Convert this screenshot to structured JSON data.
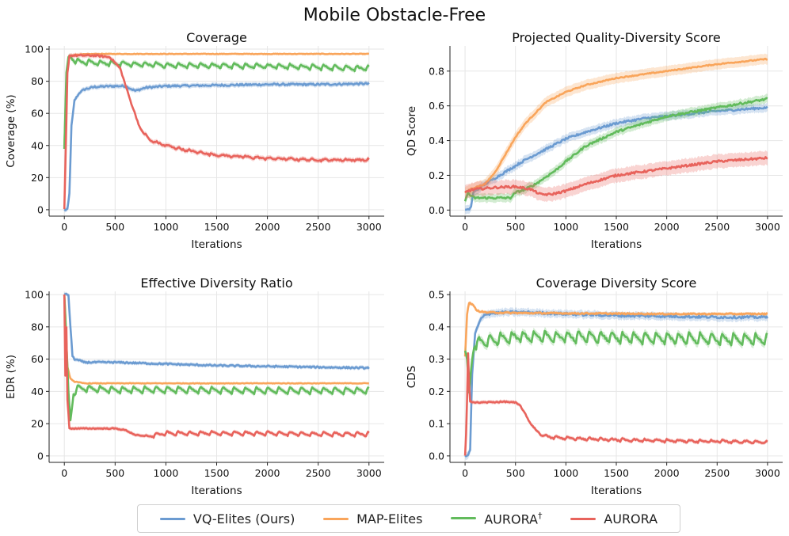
{
  "figure_title": "Mobile Obstacle-Free",
  "colors": {
    "VQ-Elites (Ours)": "#6b9bd1",
    "MAP-Elites": "#f9a55b",
    "AURORA†": "#62bb5c",
    "AURORA": "#e8635c"
  },
  "legend": [
    {
      "label": "VQ-Elites (Ours)",
      "color": "#6b9bd1"
    },
    {
      "label": "MAP-Elites",
      "color": "#f9a55b"
    },
    {
      "label": "AURORA",
      "sup": "†",
      "color": "#62bb5c"
    },
    {
      "label": "AURORA",
      "sup": "",
      "color": "#e8635c"
    }
  ],
  "chart_data": [
    {
      "type": "line",
      "title": "Coverage",
      "xlabel": "Iterations",
      "ylabel": "Coverage (%)",
      "xlim": [
        -150,
        3150
      ],
      "ylim": [
        -4,
        102
      ],
      "xticks": [
        0,
        500,
        1000,
        1500,
        2000,
        2500,
        3000
      ],
      "yticks": [
        0,
        20,
        40,
        60,
        80,
        100
      ],
      "series": [
        {
          "name": "VQ-Elites (Ours)",
          "band": 1.5,
          "noise": 0.6,
          "sawtooth": 0,
          "points": [
            [
              0,
              0
            ],
            [
              30,
              0
            ],
            [
              50,
              10
            ],
            [
              70,
              52
            ],
            [
              100,
              68
            ],
            [
              150,
              73
            ],
            [
              200,
              75
            ],
            [
              300,
              76.5
            ],
            [
              500,
              77
            ],
            [
              600,
              77
            ],
            [
              700,
              74
            ],
            [
              800,
              76
            ],
            [
              1000,
              77
            ],
            [
              1500,
              77.5
            ],
            [
              2000,
              78
            ],
            [
              2500,
              78
            ],
            [
              3000,
              78.5
            ]
          ]
        },
        {
          "name": "MAP-Elites",
          "band": 0.5,
          "noise": 0.2,
          "sawtooth": 0,
          "points": [
            [
              0,
              38
            ],
            [
              20,
              80
            ],
            [
              40,
              93
            ],
            [
              60,
              96
            ],
            [
              100,
              96.5
            ],
            [
              300,
              97
            ],
            [
              3000,
              97
            ]
          ]
        },
        {
          "name": "AURORA†",
          "band": 1.5,
          "noise": 0.4,
          "sawtooth": 3,
          "saw_start": 100,
          "points": [
            [
              0,
              38
            ],
            [
              20,
              85
            ],
            [
              40,
              95
            ],
            [
              60,
              96
            ],
            [
              80,
              93
            ],
            [
              150,
              92
            ],
            [
              500,
              91
            ],
            [
              1000,
              90
            ],
            [
              2000,
              89.5
            ],
            [
              3000,
              88
            ]
          ]
        },
        {
          "name": "AURORA",
          "band": 1.5,
          "noise": 0.5,
          "sawtooth": 1.2,
          "saw_start": 800,
          "points": [
            [
              0,
              0
            ],
            [
              15,
              40
            ],
            [
              30,
              85
            ],
            [
              50,
              96
            ],
            [
              300,
              96
            ],
            [
              450,
              95
            ],
            [
              550,
              88
            ],
            [
              650,
              68
            ],
            [
              750,
              50
            ],
            [
              850,
              43
            ],
            [
              1000,
              40
            ],
            [
              1200,
              37
            ],
            [
              1500,
              34
            ],
            [
              2000,
              32
            ],
            [
              2500,
              31
            ],
            [
              3000,
              31
            ]
          ]
        }
      ]
    },
    {
      "type": "line",
      "title": "Projected Quality-Diversity Score",
      "xlabel": "Iterations",
      "ylabel": "QD Score",
      "xlim": [
        -150,
        3150
      ],
      "ylim": [
        -0.035,
        0.945
      ],
      "xticks": [
        0,
        500,
        1000,
        1500,
        2000,
        2500,
        3000
      ],
      "yticks": [
        0.0,
        0.2,
        0.4,
        0.6,
        0.8
      ],
      "series": [
        {
          "name": "VQ-Elites (Ours)",
          "band": 0.025,
          "noise": 0.006,
          "sawtooth": 0,
          "points": [
            [
              0,
              0
            ],
            [
              30,
              0
            ],
            [
              60,
              0.02
            ],
            [
              80,
              0.1
            ],
            [
              200,
              0.15
            ],
            [
              400,
              0.22
            ],
            [
              600,
              0.29
            ],
            [
              800,
              0.35
            ],
            [
              1000,
              0.41
            ],
            [
              1200,
              0.45
            ],
            [
              1500,
              0.5
            ],
            [
              1800,
              0.53
            ],
            [
              2000,
              0.54
            ],
            [
              2500,
              0.57
            ],
            [
              3000,
              0.59
            ]
          ]
        },
        {
          "name": "MAP-Elites",
          "band": 0.03,
          "noise": 0.003,
          "sawtooth": 0,
          "points": [
            [
              0,
              0.1
            ],
            [
              50,
              0.12
            ],
            [
              200,
              0.15
            ],
            [
              300,
              0.22
            ],
            [
              400,
              0.32
            ],
            [
              500,
              0.42
            ],
            [
              600,
              0.5
            ],
            [
              800,
              0.62
            ],
            [
              1000,
              0.68
            ],
            [
              1200,
              0.72
            ],
            [
              1500,
              0.76
            ],
            [
              2000,
              0.8
            ],
            [
              2500,
              0.84
            ],
            [
              3000,
              0.87
            ]
          ]
        },
        {
          "name": "AURORA†",
          "band": 0.025,
          "noise": 0.006,
          "sawtooth": 0,
          "points": [
            [
              0,
              0.05
            ],
            [
              30,
              0.1
            ],
            [
              60,
              0.08
            ],
            [
              100,
              0.07
            ],
            [
              300,
              0.07
            ],
            [
              450,
              0.07
            ],
            [
              500,
              0.1
            ],
            [
              600,
              0.12
            ],
            [
              700,
              0.15
            ],
            [
              900,
              0.23
            ],
            [
              1000,
              0.28
            ],
            [
              1200,
              0.37
            ],
            [
              1500,
              0.45
            ],
            [
              2000,
              0.54
            ],
            [
              2500,
              0.59
            ],
            [
              2800,
              0.62
            ],
            [
              3000,
              0.64
            ]
          ]
        },
        {
          "name": "AURORA",
          "band": 0.04,
          "noise": 0.006,
          "sawtooth": 0,
          "points": [
            [
              0,
              0.1
            ],
            [
              30,
              0.11
            ],
            [
              100,
              0.12
            ],
            [
              300,
              0.13
            ],
            [
              500,
              0.135
            ],
            [
              650,
              0.12
            ],
            [
              750,
              0.09
            ],
            [
              850,
              0.09
            ],
            [
              1000,
              0.11
            ],
            [
              1200,
              0.15
            ],
            [
              1500,
              0.2
            ],
            [
              2000,
              0.24
            ],
            [
              2500,
              0.28
            ],
            [
              3000,
              0.3
            ]
          ]
        }
      ]
    },
    {
      "type": "line",
      "title": "Effective Diversity Ratio",
      "xlabel": "Iterations",
      "ylabel": "EDR (%)",
      "xlim": [
        -150,
        3150
      ],
      "ylim": [
        -4,
        102
      ],
      "xticks": [
        0,
        500,
        1000,
        1500,
        2000,
        2500,
        3000
      ],
      "yticks": [
        0,
        20,
        40,
        60,
        80,
        100
      ],
      "series": [
        {
          "name": "VQ-Elites (Ours)",
          "band": 1.2,
          "noise": 0.5,
          "sawtooth": 0,
          "points": [
            [
              0,
              100
            ],
            [
              40,
              100
            ],
            [
              60,
              80
            ],
            [
              80,
              62
            ],
            [
              100,
              60
            ],
            [
              150,
              59
            ],
            [
              200,
              58
            ],
            [
              500,
              58
            ],
            [
              1000,
              57
            ],
            [
              1500,
              56
            ],
            [
              2000,
              55.5
            ],
            [
              2500,
              55
            ],
            [
              3000,
              54.5
            ]
          ]
        },
        {
          "name": "MAP-Elites",
          "band": 0.5,
          "noise": 0.2,
          "sawtooth": 0,
          "points": [
            [
              0,
              100
            ],
            [
              15,
              80
            ],
            [
              30,
              55
            ],
            [
              60,
              48
            ],
            [
              100,
              46
            ],
            [
              200,
              45
            ],
            [
              3000,
              45
            ]
          ]
        },
        {
          "name": "AURORA†",
          "band": 1.5,
          "noise": 0.3,
          "sawtooth": 4,
          "saw_start": 100,
          "points": [
            [
              0,
              100
            ],
            [
              20,
              70
            ],
            [
              40,
              40
            ],
            [
              60,
              22
            ],
            [
              90,
              38
            ],
            [
              130,
              42
            ],
            [
              500,
              41
            ],
            [
              1000,
              41
            ],
            [
              2000,
              40.5
            ],
            [
              3000,
              40.5
            ]
          ]
        },
        {
          "name": "AURORA",
          "band": 1.2,
          "noise": 0.3,
          "sawtooth": 2.5,
          "saw_start": 800,
          "points": [
            [
              0,
              100
            ],
            [
              10,
              50
            ],
            [
              20,
              80
            ],
            [
              30,
              35
            ],
            [
              50,
              17
            ],
            [
              100,
              17
            ],
            [
              500,
              17
            ],
            [
              600,
              16
            ],
            [
              700,
              13
            ],
            [
              800,
              12
            ],
            [
              900,
              13
            ],
            [
              1000,
              14
            ],
            [
              1500,
              14
            ],
            [
              2000,
              14
            ],
            [
              2500,
              13.5
            ],
            [
              3000,
              13.5
            ]
          ]
        }
      ]
    },
    {
      "type": "line",
      "title": "Coverage Diversity Score",
      "xlabel": "Iterations",
      "ylabel": "CDS",
      "xlim": [
        -150,
        3150
      ],
      "ylim": [
        -0.02,
        0.51
      ],
      "xticks": [
        0,
        500,
        1000,
        1500,
        2000,
        2500,
        3000
      ],
      "yticks": [
        0.0,
        0.1,
        0.2,
        0.3,
        0.4,
        0.5
      ],
      "series": [
        {
          "name": "VQ-Elites (Ours)",
          "band": 0.012,
          "noise": 0.004,
          "sawtooth": 0,
          "points": [
            [
              0,
              0
            ],
            [
              30,
              0
            ],
            [
              50,
              0.02
            ],
            [
              70,
              0.25
            ],
            [
              100,
              0.38
            ],
            [
              150,
              0.42
            ],
            [
              200,
              0.44
            ],
            [
              400,
              0.445
            ],
            [
              600,
              0.445
            ],
            [
              1000,
              0.44
            ],
            [
              1500,
              0.435
            ],
            [
              2000,
              0.433
            ],
            [
              2500,
              0.43
            ],
            [
              3000,
              0.43
            ]
          ]
        },
        {
          "name": "MAP-Elites",
          "band": 0.005,
          "noise": 0.002,
          "sawtooth": 0,
          "points": [
            [
              0,
              0.31
            ],
            [
              20,
              0.44
            ],
            [
              40,
              0.475
            ],
            [
              70,
              0.47
            ],
            [
              120,
              0.45
            ],
            [
              200,
              0.445
            ],
            [
              500,
              0.443
            ],
            [
              1000,
              0.442
            ],
            [
              2000,
              0.44
            ],
            [
              3000,
              0.44
            ]
          ]
        },
        {
          "name": "AURORA†",
          "band": 0.012,
          "noise": 0.004,
          "sawtooth": 0.035,
          "saw_start": 100,
          "points": [
            [
              0,
              0.33
            ],
            [
              20,
              0.3
            ],
            [
              40,
              0.2
            ],
            [
              70,
              0.3
            ],
            [
              100,
              0.35
            ],
            [
              500,
              0.37
            ],
            [
              1000,
              0.37
            ],
            [
              2000,
              0.365
            ],
            [
              3000,
              0.36
            ]
          ]
        },
        {
          "name": "AURORA",
          "band": 0.006,
          "noise": 0.002,
          "sawtooth": 0.008,
          "saw_start": 800,
          "points": [
            [
              0,
              0
            ],
            [
              15,
              0.1
            ],
            [
              30,
              0.32
            ],
            [
              45,
              0.17
            ],
            [
              100,
              0.165
            ],
            [
              400,
              0.168
            ],
            [
              500,
              0.165
            ],
            [
              550,
              0.155
            ],
            [
              650,
              0.1
            ],
            [
              750,
              0.065
            ],
            [
              850,
              0.058
            ],
            [
              1000,
              0.055
            ],
            [
              1500,
              0.05
            ],
            [
              2000,
              0.047
            ],
            [
              2500,
              0.045
            ],
            [
              3000,
              0.043
            ]
          ]
        }
      ]
    }
  ]
}
